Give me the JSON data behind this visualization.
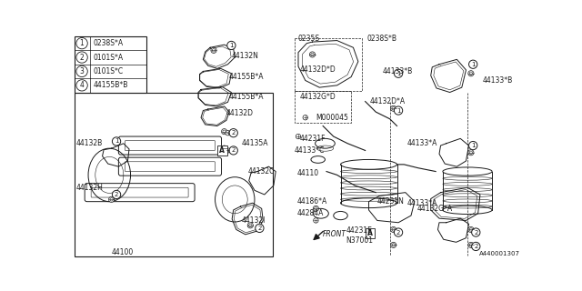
{
  "bg_color": "#ffffff",
  "line_color": "#1a1a1a",
  "text_color": "#1a1a1a",
  "legend_items": [
    {
      "num": "1",
      "code": "0238S*A"
    },
    {
      "num": "2",
      "code": "0101S*A"
    },
    {
      "num": "3",
      "code": "0101S*C"
    },
    {
      "num": "4",
      "code": "44155B*B"
    }
  ],
  "watermark": "A440001307"
}
